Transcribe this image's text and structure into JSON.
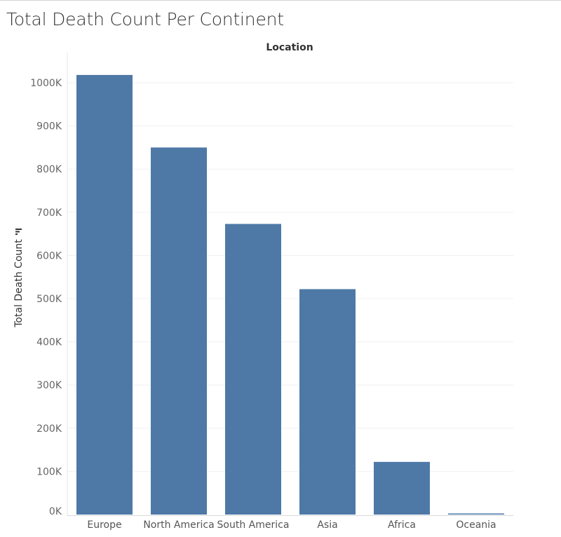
{
  "chart_data": {
    "type": "bar",
    "title": "Total Death Count Per Continent",
    "x_header": "Location",
    "ylabel": "Total Death Count",
    "categories": [
      "Europe",
      "North America",
      "South America",
      "Asia",
      "Africa",
      "Oceania"
    ],
    "values": [
      1018000,
      850000,
      673000,
      522000,
      122000,
      2500
    ],
    "ylim": [
      0,
      1040000
    ],
    "yticks": [
      0,
      100000,
      200000,
      300000,
      400000,
      500000,
      600000,
      700000,
      800000,
      900000,
      1000000
    ],
    "ytick_labels": [
      "0K",
      "100K",
      "200K",
      "300K",
      "400K",
      "500K",
      "600K",
      "700K",
      "800K",
      "900K",
      "1000K"
    ],
    "grid": true,
    "bar_color": "#4e79a7",
    "sort_icon": "sort-descending-icon"
  }
}
